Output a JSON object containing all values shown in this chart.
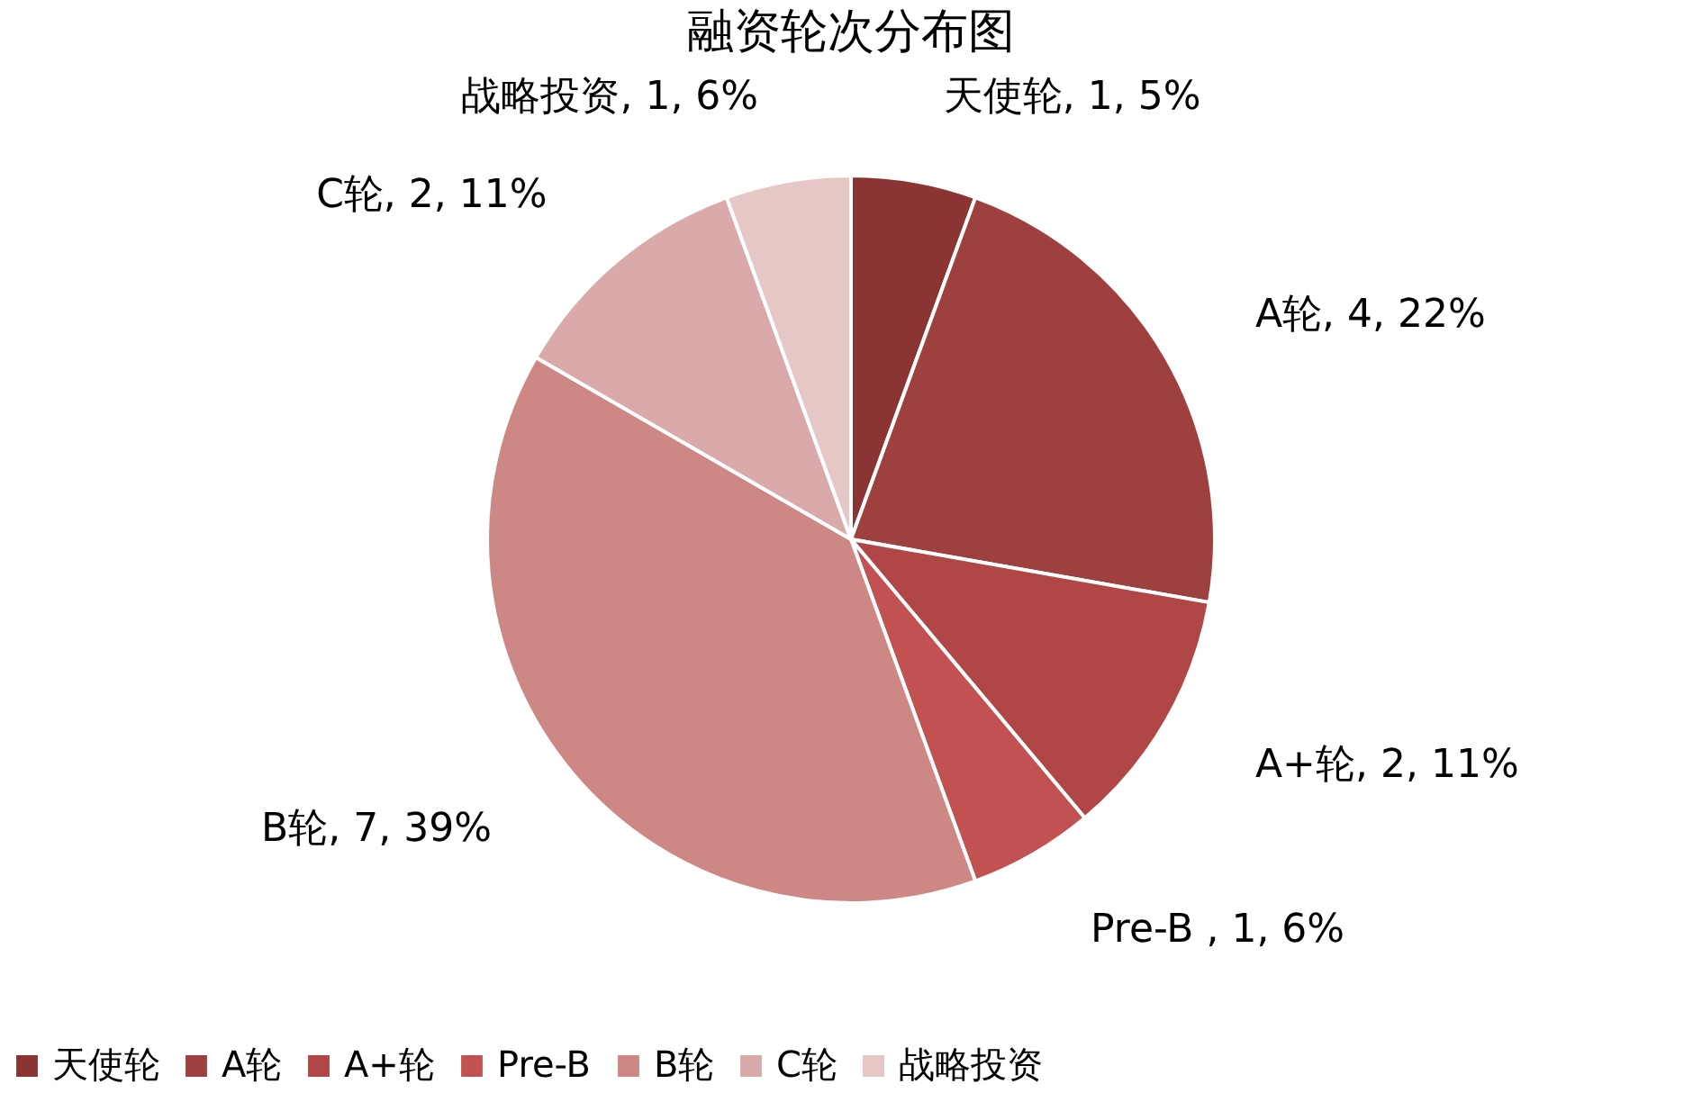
{
  "chart_data": {
    "type": "pie",
    "title": "融资轮次分布图",
    "categories": [
      "天使轮",
      "A轮",
      "A+轮",
      "Pre-B",
      "B轮",
      "C轮",
      "战略投资"
    ],
    "values": [
      1,
      4,
      2,
      1,
      7,
      2,
      1
    ],
    "colors": [
      "#8b3434",
      "#9e4040",
      "#b04646",
      "#c25252",
      "#cd8784",
      "#d9aaa9",
      "#e5c7c6"
    ],
    "value_labels": [
      "天使轮, 1, 5%",
      "A轮, 4, 22%",
      "A+轮, 2, 11%",
      "Pre-B , 1, 6%",
      "B轮, 7, 39%",
      "C轮, 2, 11%",
      "战略投资, 1, 6%"
    ],
    "legend": "bottom"
  }
}
